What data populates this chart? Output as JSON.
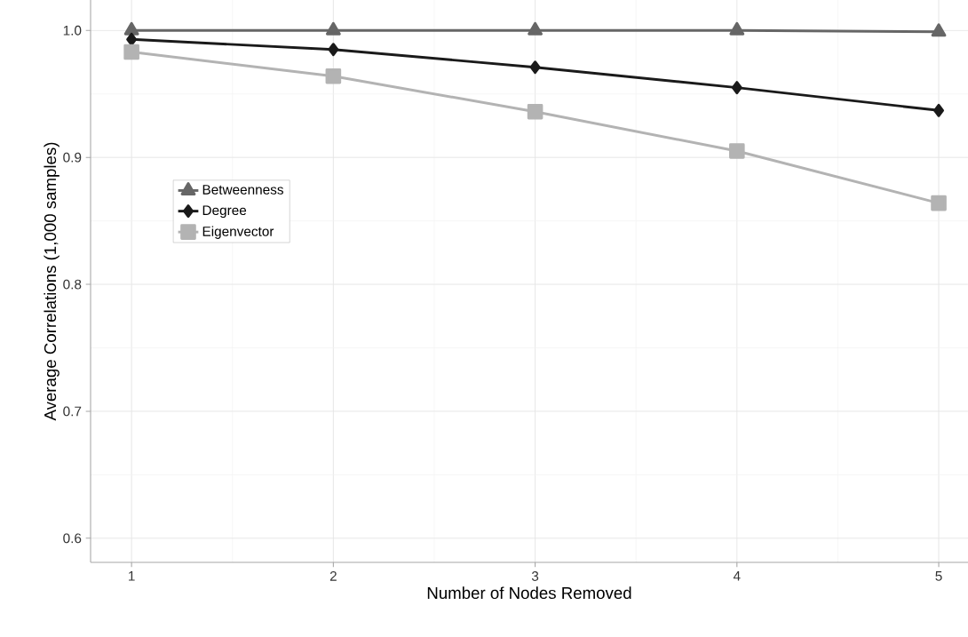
{
  "chart_data": {
    "type": "line",
    "xlabel": "Number of Nodes Removed",
    "ylabel": "Average Correlations (1,000 samples)",
    "x": [
      1,
      2,
      3,
      4,
      5
    ],
    "series": [
      {
        "name": "Betweenness",
        "color": "#666666",
        "marker": "triangle",
        "values": [
          1.0,
          1.0,
          1.0,
          1.0,
          0.999
        ]
      },
      {
        "name": "Degree",
        "color": "#1a1a1a",
        "marker": "diamond",
        "values": [
          0.993,
          0.985,
          0.971,
          0.955,
          0.937
        ]
      },
      {
        "name": "Eigenvector",
        "color": "#b3b3b3",
        "marker": "square",
        "values": [
          0.983,
          0.964,
          0.936,
          0.905,
          0.864
        ]
      }
    ],
    "xlim": [
      0.797,
      5.145
    ],
    "ylim": [
      0.581,
      1.024
    ],
    "xticks": [
      1,
      2,
      3,
      4,
      5
    ],
    "yticks": [
      {
        "value": 0.6,
        "label": "0.6"
      },
      {
        "value": 0.7,
        "label": "0.7"
      },
      {
        "value": 0.8,
        "label": "0.8"
      },
      {
        "value": 0.9,
        "label": "0.9"
      },
      {
        "value": 1.0,
        "label": "1.0"
      }
    ],
    "grid": true,
    "legend": "left",
    "line_style": "solid"
  }
}
